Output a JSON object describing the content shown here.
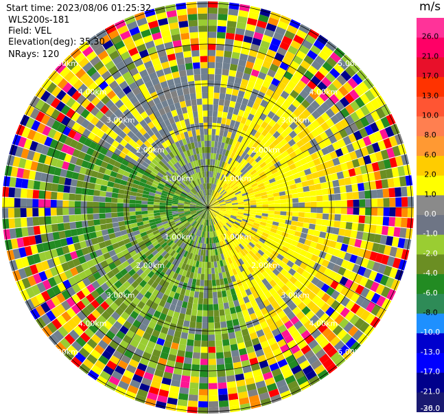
{
  "header": {
    "start_time": "Start time: 2023/08/06 01:25:32",
    "instrument": "WLS200s-181",
    "field": "Field: VEL",
    "elevation": "Elevation(deg): 35.30",
    "nrays": "NRays: 120"
  },
  "chart_data": {
    "type": "ppi",
    "units": "m/s",
    "nrays": 120,
    "range_rings_km": [
      1,
      2,
      3,
      4,
      5
    ],
    "ring_labels": [
      "1.00km",
      "2.00km",
      "3.00km",
      "4.00km",
      "5.00km"
    ],
    "colorbar": {
      "tick_labels": [
        "26.0",
        "21.0",
        "17.0",
        "13.0",
        "10.0",
        "8.0",
        "6.0",
        "2.0",
        "1.0",
        "0.0",
        "-1.0",
        "-2.0",
        "-4.0",
        "-6.0",
        "-8.0",
        "-10.0",
        "-13.0",
        "-17.0",
        "-21.0",
        "-26.0",
        "-30.0"
      ],
      "colors": [
        "#ff3399",
        "#ff0066",
        "#e8102a",
        "#ff3300",
        "#ff5533",
        "#ff7f50",
        "#ff9933",
        "#ffcc00",
        "#ffff00",
        "#8a8a8a",
        "#6e7585",
        "#9acd32",
        "#6b8e23",
        "#228b22",
        "#2e8b57",
        "#1e90ff",
        "#0000cd",
        "#0000ff",
        "#00008b",
        "#191970"
      ]
    },
    "colors": {
      "yellow": "#ffff00",
      "gold": "#ffd700",
      "slate": "#708090",
      "gray": "#808080",
      "olive": "#6b8e23",
      "yellowgreen": "#9acd32",
      "green": "#228b22",
      "darkblue": "#00008b",
      "blue": "#0000ff",
      "red": "#ff0000",
      "pink": "#ff1493",
      "orange": "#ff8c00"
    }
  }
}
